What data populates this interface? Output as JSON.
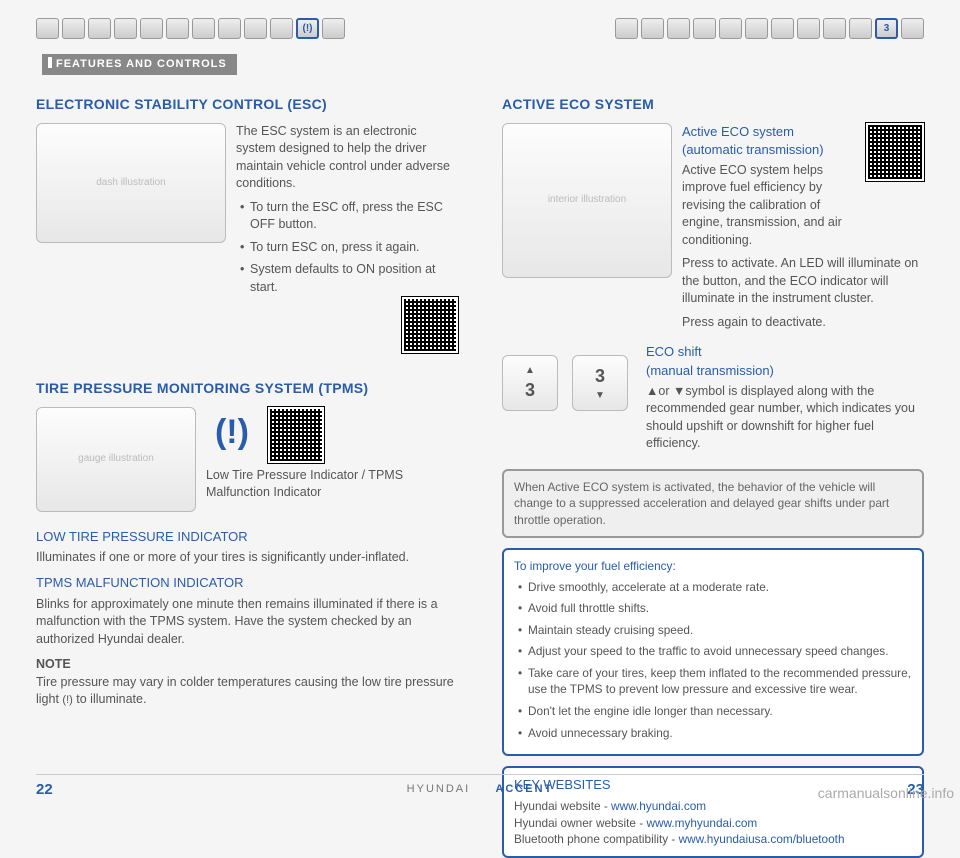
{
  "section_label": "FEATURES AND CONTROLS",
  "top_icons_left": [
    "",
    "",
    "",
    "",
    "",
    "",
    "",
    "",
    "",
    "",
    "(!)",
    ""
  ],
  "top_icons_left_active_index": 10,
  "top_icons_right": [
    "",
    "",
    "",
    "",
    "",
    "",
    "",
    "",
    "",
    "",
    "3",
    ""
  ],
  "top_icons_right_active_index": 10,
  "left": {
    "esc": {
      "title": "ELECTRONIC STABILITY CONTROL (ESC)",
      "intro": "The ESC system is an electronic system designed to help the driver maintain vehicle control under adverse conditions.",
      "bullets": [
        "To turn the ESC off, press the ESC OFF button.",
        "To turn ESC on, press it again.",
        "System defaults to ON position at start."
      ]
    },
    "tpms": {
      "title": "TIRE PRESSURE MONITORING SYSTEM (TPMS)",
      "icon_caption": "Low Tire Pressure Indicator / TPMS Malfunction Indicator",
      "low_title": "LOW TIRE PRESSURE INDICATOR",
      "low_text": "Illuminates if one or more of your tires is significantly under-inflated.",
      "mal_title": "TPMS MALFUNCTION INDICATOR",
      "mal_text": "Blinks for approximately one minute then remains illuminated if there is a malfunction with the TPMS system. Have the system checked by an authorized Hyundai dealer.",
      "note_label": "NOTE",
      "note_text_a": "Tire pressure may vary in colder temperatures causing the low tire pressure light ",
      "note_text_b": " to illuminate."
    }
  },
  "right": {
    "eco": {
      "title": "ACTIVE ECO SYSTEM",
      "auto_title": "Active ECO system (automatic transmission)",
      "auto_text": "Active ECO system helps improve fuel efficiency by revising the calibration of engine, transmission, and air conditioning.",
      "activate": "Press to activate. An LED will illuminate on the button, and the ECO indicator will illuminate in the instrument cluster.",
      "deactivate": "Press again to deactivate.",
      "manual_title": "ECO shift\n(manual transmission)",
      "manual_text": "▲or ▼symbol is displayed along with the recommended gear number, which indicates you should upshift or downshift for higher fuel efficiency.",
      "gear_display": "3"
    },
    "grey_box": "When Active ECO system is activated, the behavior of the vehicle will change to a suppressed acceleration and delayed gear shifts under part throttle operation.",
    "tips": {
      "title": "To improve your fuel efficiency:",
      "items": [
        "Drive smoothly, accelerate at a moderate rate.",
        "Avoid full throttle shifts.",
        "Maintain steady cruising speed.",
        "Adjust your speed to the traffic to avoid unnecessary speed changes.",
        "Take care of your tires, keep them inflated to the recommended pressure, use the TPMS to prevent low pressure and excessive tire wear.",
        "Don't let the engine idle longer than necessary.",
        "Avoid unnecessary braking."
      ]
    },
    "websites": {
      "title": "KEY WEBSITES",
      "rows": [
        {
          "label": "Hyundai website - ",
          "url": "www.hyundai.com"
        },
        {
          "label": "Hyundai owner website - ",
          "url": "www.myhyundai.com"
        },
        {
          "label": "Bluetooth phone compatibility - ",
          "url": "www.hyundaiusa.com/bluetooth"
        }
      ]
    }
  },
  "footer": {
    "page_left": "22",
    "center_a": "HYUNDAI",
    "center_b": "ACCENT",
    "page_right": "23"
  },
  "watermark": "carmanualsonline.info",
  "colors": {
    "brand_blue": "#2a5caa",
    "body_text": "#555555",
    "box_grey": "#999999",
    "bg": "#f5f5f5"
  }
}
